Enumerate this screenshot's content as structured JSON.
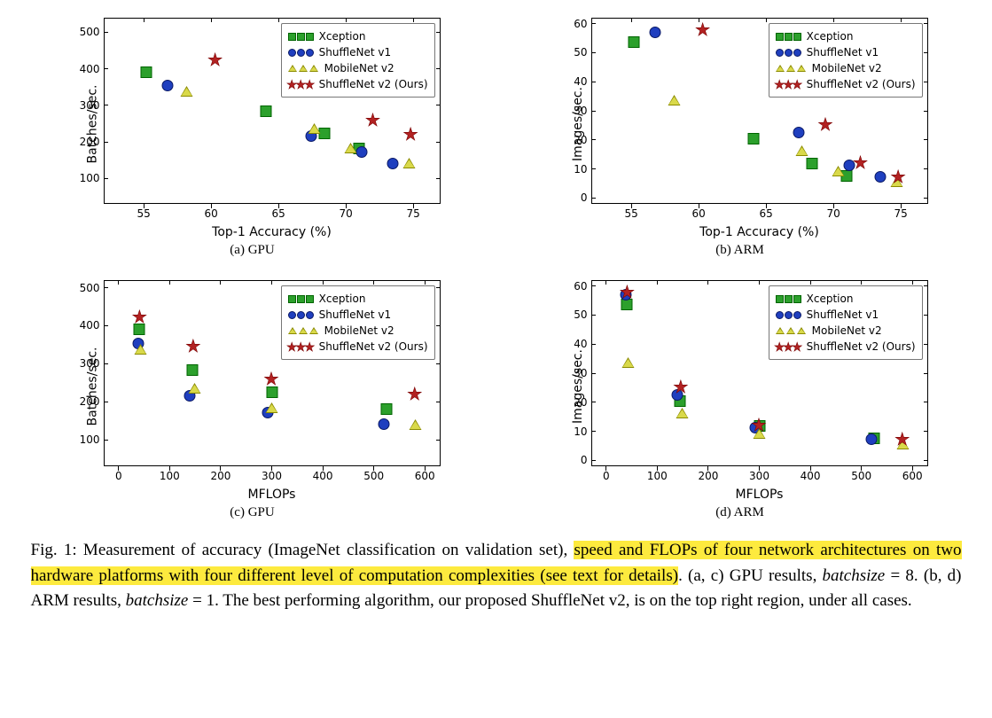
{
  "colors": {
    "xception_fill": "#2ca02c",
    "xception_edge": "#006400",
    "shufflev1_fill": "#1f3fbf",
    "shufflev1_edge": "#0b1a66",
    "mobilev2_fill": "#d9d94a",
    "mobilev2_edge": "#8a8a00",
    "shufflev2_fill": "#b22222",
    "shufflev2_edge": "#7a0000",
    "axis": "#000000",
    "bg": "#ffffff"
  },
  "legend_labels": {
    "xception": "Xception",
    "shufflev1": "ShuffleNet v1",
    "mobilev2": "MobileNet v2",
    "shufflev2": "ShuffleNet v2 (Ours)"
  },
  "subplots": {
    "a": {
      "caption": "(a) GPU",
      "xlabel": "Top-1 Accuracy (%)",
      "ylabel": "Batches/sec.",
      "xlim": [
        52,
        77
      ],
      "ylim": [
        30,
        540
      ],
      "xticks": [
        55,
        60,
        65,
        70,
        75
      ],
      "yticks": [
        100,
        200,
        300,
        400,
        500
      ],
      "legend_pos": "top-right",
      "series": {
        "xception": [
          [
            55.2,
            385
          ],
          [
            64.1,
            278
          ],
          [
            68.4,
            218
          ],
          [
            71.0,
            175
          ]
        ],
        "shufflev1": [
          [
            56.8,
            347
          ],
          [
            67.4,
            210
          ],
          [
            71.2,
            165
          ],
          [
            73.5,
            135
          ]
        ],
        "mobilev2": [
          [
            58.2,
            333
          ],
          [
            67.7,
            230
          ],
          [
            70.4,
            178
          ],
          [
            74.7,
            135
          ]
        ],
        "shufflev2": [
          [
            60.3,
            418
          ],
          [
            69.4,
            340
          ],
          [
            72.0,
            253
          ],
          [
            74.8,
            215
          ]
        ]
      }
    },
    "b": {
      "caption": "(b) ARM",
      "xlabel": "Top-1 Accuracy (%)",
      "ylabel": "Images/sec.",
      "xlim": [
        52,
        77
      ],
      "ylim": [
        -2,
        62
      ],
      "xticks": [
        55,
        60,
        65,
        70,
        75
      ],
      "yticks": [
        0,
        10,
        20,
        30,
        40,
        50,
        60
      ],
      "legend_pos": "top-right",
      "series": {
        "xception": [
          [
            55.2,
            52.8
          ],
          [
            64.1,
            19.5
          ],
          [
            68.4,
            11
          ],
          [
            71.0,
            6.9
          ]
        ],
        "shufflev1": [
          [
            56.8,
            56.3
          ],
          [
            67.4,
            21.8
          ],
          [
            71.2,
            10.5
          ],
          [
            73.5,
            6.5
          ]
        ],
        "mobilev2": [
          [
            58.2,
            33
          ],
          [
            67.7,
            15.7
          ],
          [
            70.4,
            8.5
          ],
          [
            74.7,
            5
          ]
        ],
        "shufflev2": [
          [
            60.3,
            57
          ],
          [
            69.4,
            24.5
          ],
          [
            72.0,
            11.3
          ],
          [
            74.8,
            6.6
          ]
        ]
      }
    },
    "c": {
      "caption": "(c) GPU",
      "xlabel": "MFLOPs",
      "ylabel": "Batches/sec.",
      "xlim": [
        -30,
        630
      ],
      "ylim": [
        30,
        520
      ],
      "xticks": [
        0,
        100,
        200,
        300,
        400,
        500,
        600
      ],
      "yticks": [
        100,
        200,
        300,
        400,
        500
      ],
      "legend_pos": "top-right",
      "series": {
        "xception": [
          [
            40,
            385
          ],
          [
            145,
            278
          ],
          [
            300,
            218
          ],
          [
            525,
            175
          ]
        ],
        "shufflev1": [
          [
            38,
            347
          ],
          [
            140,
            210
          ],
          [
            292,
            165
          ],
          [
            520,
            135
          ]
        ],
        "mobilev2": [
          [
            43,
            333
          ],
          [
            150,
            230
          ],
          [
            300,
            178
          ],
          [
            582,
            135
          ]
        ],
        "shufflev2": [
          [
            41,
            418
          ],
          [
            146,
            340
          ],
          [
            299,
            253
          ],
          [
            580,
            215
          ]
        ]
      }
    },
    "d": {
      "caption": "(d) ARM",
      "xlabel": "MFLOPs",
      "ylabel": "Images/sec.",
      "xlim": [
        -30,
        630
      ],
      "ylim": [
        -2,
        62
      ],
      "xticks": [
        0,
        100,
        200,
        300,
        400,
        500,
        600
      ],
      "yticks": [
        0,
        10,
        20,
        30,
        40,
        50,
        60
      ],
      "legend_pos": "top-right",
      "series": {
        "xception": [
          [
            40,
            52.8
          ],
          [
            145,
            19.5
          ],
          [
            300,
            11
          ],
          [
            525,
            6.9
          ]
        ],
        "shufflev1": [
          [
            38,
            56.3
          ],
          [
            140,
            21.8
          ],
          [
            292,
            10.5
          ],
          [
            520,
            6.5
          ]
        ],
        "mobilev2": [
          [
            43,
            33
          ],
          [
            150,
            15.7
          ],
          [
            300,
            8.5
          ],
          [
            582,
            5
          ]
        ],
        "shufflev2": [
          [
            41,
            57
          ],
          [
            146,
            24.5
          ],
          [
            299,
            11.3
          ],
          [
            580,
            6.6
          ]
        ]
      }
    }
  },
  "caption": {
    "prefix": "Fig. 1: Measurement of accuracy (ImageNet classification on validation set), ",
    "hl": "speed and FLOPs of four network architectures on two hardware platforms with four different level of computation complexities (see text for details)",
    "post1": ". (a, c) GPU results, ",
    "bs1_lbl": "batchsize",
    "bs1_eq": " = 8. (b, d) ARM results, ",
    "bs2_lbl": "batchsize",
    "post2": " = 1. The best performing algorithm, our proposed ShuffleNet v2, is on the top right region, under all cases."
  },
  "marker_size": 13,
  "label_fontsize": 14,
  "tick_fontsize": 12
}
